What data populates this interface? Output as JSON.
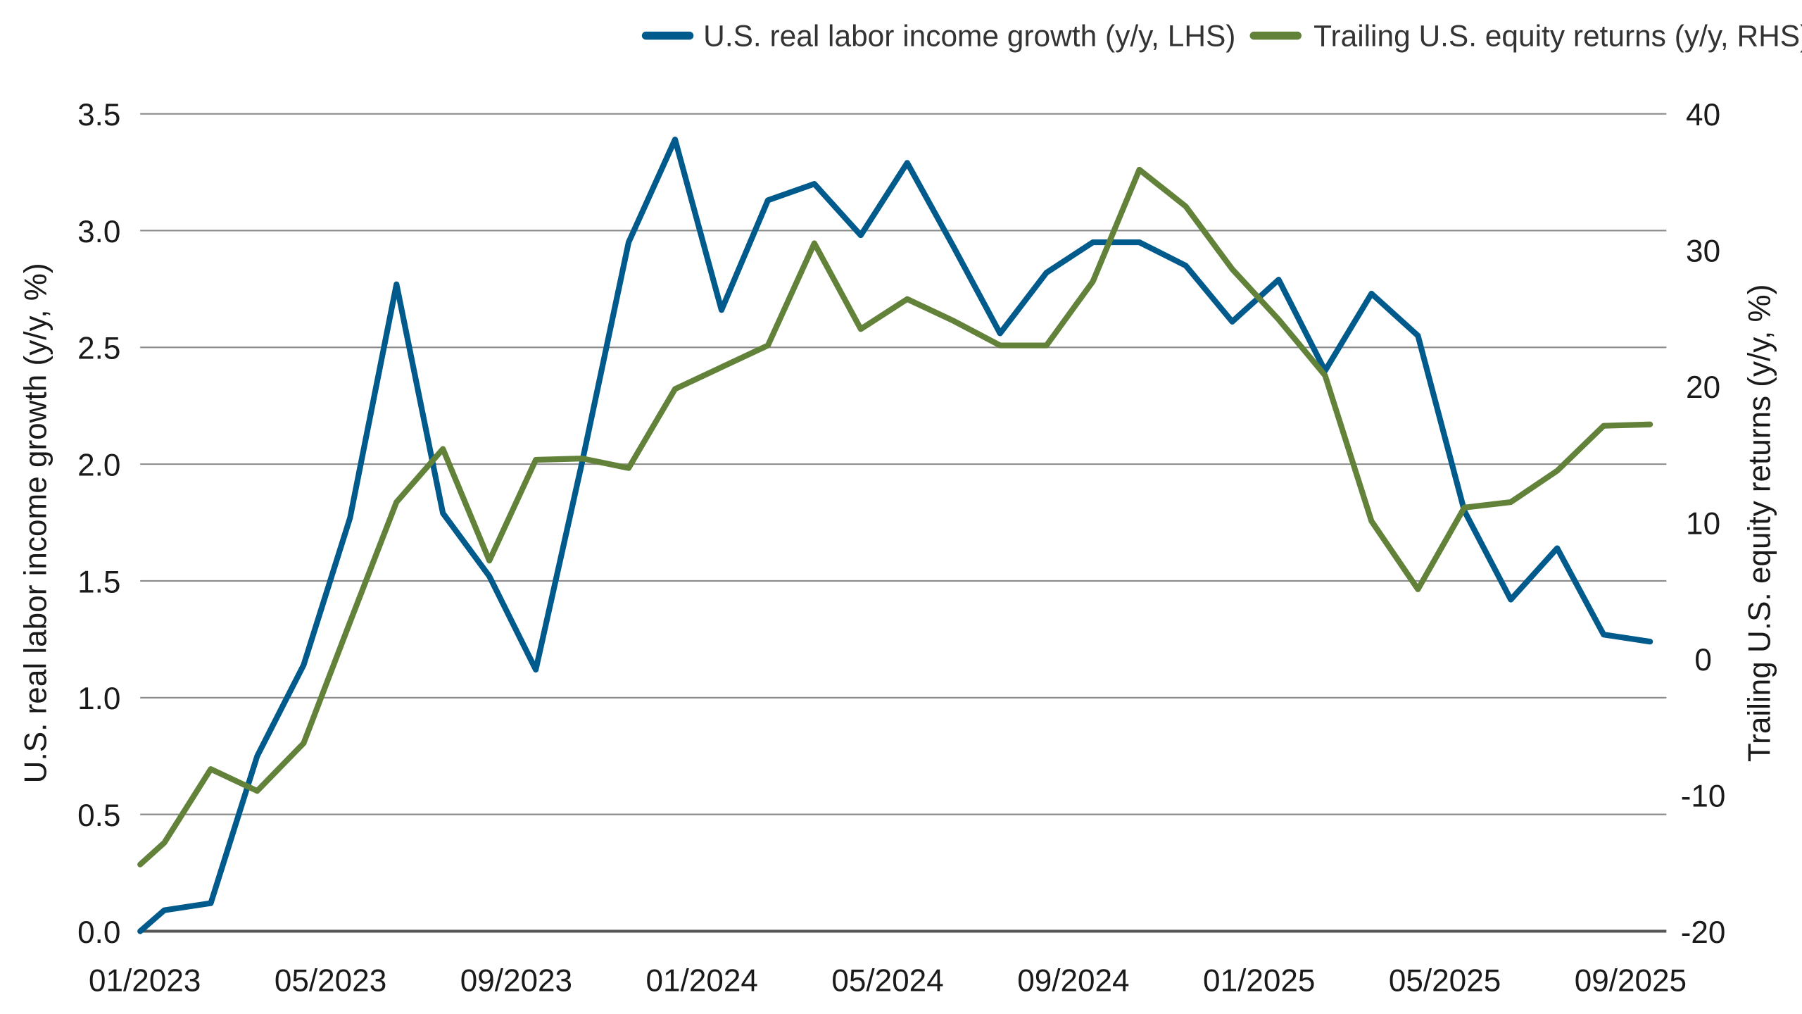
{
  "chart_data": {
    "type": "line",
    "xlabel": "",
    "x_tick_labels": [
      "01/2023",
      "05/2023",
      "09/2023",
      "01/2024",
      "05/2024",
      "09/2024",
      "01/2025",
      "05/2025",
      "09/2025"
    ],
    "x": [
      "12/2022",
      "01/2023",
      "02/2023",
      "03/2023",
      "04/2023",
      "05/2023",
      "06/2023",
      "07/2023",
      "08/2023",
      "09/2023",
      "10/2023",
      "11/2023",
      "12/2023",
      "01/2024",
      "02/2024",
      "03/2024",
      "04/2024",
      "05/2024",
      "06/2024",
      "07/2024",
      "08/2024",
      "09/2024",
      "10/2024",
      "11/2024",
      "12/2024",
      "01/2025",
      "02/2025",
      "03/2025",
      "04/2025",
      "05/2025",
      "06/2025",
      "07/2025",
      "08/2025",
      "09/2025"
    ],
    "left_axis": {
      "label": "U.S. real labor income growth (y/y, %)",
      "ylim": [
        0,
        3.5
      ],
      "ticks": [
        "0.0",
        "0.5",
        "1.0",
        "1.5",
        "2.0",
        "2.5",
        "3.0",
        "3.5"
      ]
    },
    "right_axis": {
      "label": "Trailing U.S. equity returns (y/y, %)",
      "ylim": [
        -20,
        40
      ],
      "ticks": [
        "-20",
        "-10",
        "0",
        "10",
        "20",
        "30",
        "40"
      ]
    },
    "grid": true,
    "legend_position": "top-right",
    "series": [
      {
        "name": "U.S. real labor income growth (y/y, LHS)",
        "axis": "left",
        "color": "#005a8c",
        "values": [
          0.0,
          0.09,
          0.12,
          0.75,
          1.14,
          1.77,
          2.77,
          1.79,
          1.52,
          1.12,
          2.01,
          2.95,
          3.39,
          2.66,
          3.13,
          3.2,
          2.98,
          3.29,
          2.93,
          2.56,
          2.82,
          2.95,
          2.95,
          2.85,
          2.61,
          2.79,
          2.4,
          2.73,
          2.55,
          1.8,
          1.42,
          1.64,
          1.27,
          1.24
        ]
      },
      {
        "name": "Trailing U.S. equity returns (y/y, RHS)",
        "axis": "right",
        "color": "#62823a",
        "values": [
          -15.1,
          -13.5,
          -8.1,
          -9.7,
          -6.2,
          2.7,
          11.5,
          15.4,
          7.2,
          14.6,
          14.7,
          14.0,
          19.8,
          21.4,
          23.0,
          30.5,
          24.2,
          26.4,
          24.8,
          23.0,
          23.0,
          27.7,
          35.9,
          33.2,
          28.6,
          24.9,
          20.8,
          10.1,
          5.1,
          11.1,
          11.5,
          13.8,
          17.1,
          17.2
        ]
      }
    ]
  }
}
